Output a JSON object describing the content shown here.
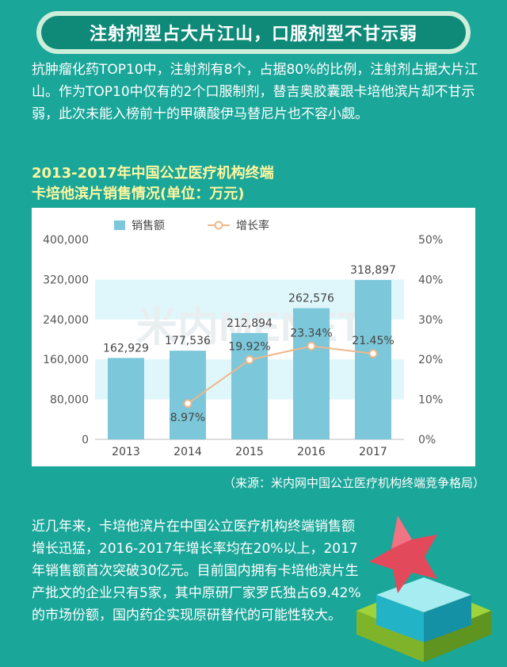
{
  "banner": {
    "title": "注射剂型占大片江山，口服剂型不甘示弱"
  },
  "intro": {
    "text": "抗肿瘤化药TOP10中，注射剂有8个，占据80%的比例，注射剂占据大片江山。作为TOP10中仅有的2个口服制剂，替吉奥胶囊跟卡培他滨片却不甘示弱，此次未能入榜前十的甲磺酸伊马替尼片也不容小觑。"
  },
  "chart_title": {
    "line1": "2013-2017年中国公立医疗机构终端",
    "line2": "卡培他滨片销售情况(单位：万元)"
  },
  "chart_data": {
    "type": "bar",
    "categories": [
      "2013",
      "2014",
      "2015",
      "2016",
      "2017"
    ],
    "series": [
      {
        "name": "销售额",
        "type": "bar",
        "axis": "left",
        "values": [
          162929,
          177536,
          212894,
          262576,
          318897
        ],
        "labels": [
          "162,929",
          "177,536",
          "212,894",
          "262,576",
          "318,897"
        ]
      },
      {
        "name": "增长率",
        "type": "line",
        "axis": "right",
        "values": [
          null,
          8.97,
          19.92,
          23.34,
          21.45
        ],
        "labels": [
          "",
          "8.97%",
          "19.92%",
          "23.34%",
          "21.45%"
        ]
      }
    ],
    "y_left": {
      "ylim": [
        0,
        400000
      ],
      "ticks": [
        "0",
        "80,000",
        "160,000",
        "240,000",
        "320,000",
        "400,000"
      ]
    },
    "y_right": {
      "ylim": [
        0,
        50
      ],
      "ticks": [
        "0%",
        "10%",
        "20%",
        "30%",
        "40%",
        "50%"
      ]
    },
    "legend_position": "top",
    "colors": {
      "bar": "#7cc7d9",
      "line": "#f0b78a",
      "band": "#dff7fb"
    },
    "watermark": "米内MENET"
  },
  "source": {
    "text": "（来源：米内网中国公立医疗机构终端竞争格局）"
  },
  "outro": {
    "text": "近几年来，卡培他滨片在中国公立医疗机构终端销售额增长迅猛，2016-2017年增长率均在20%以上，2017年销售额首次突破30亿元。目前国内拥有卡培他滨片生产批文的企业只有5家，其中原研厂家罗氏独占69.42%的市场份额，国内药企实现原研替代的可能性较大。"
  }
}
